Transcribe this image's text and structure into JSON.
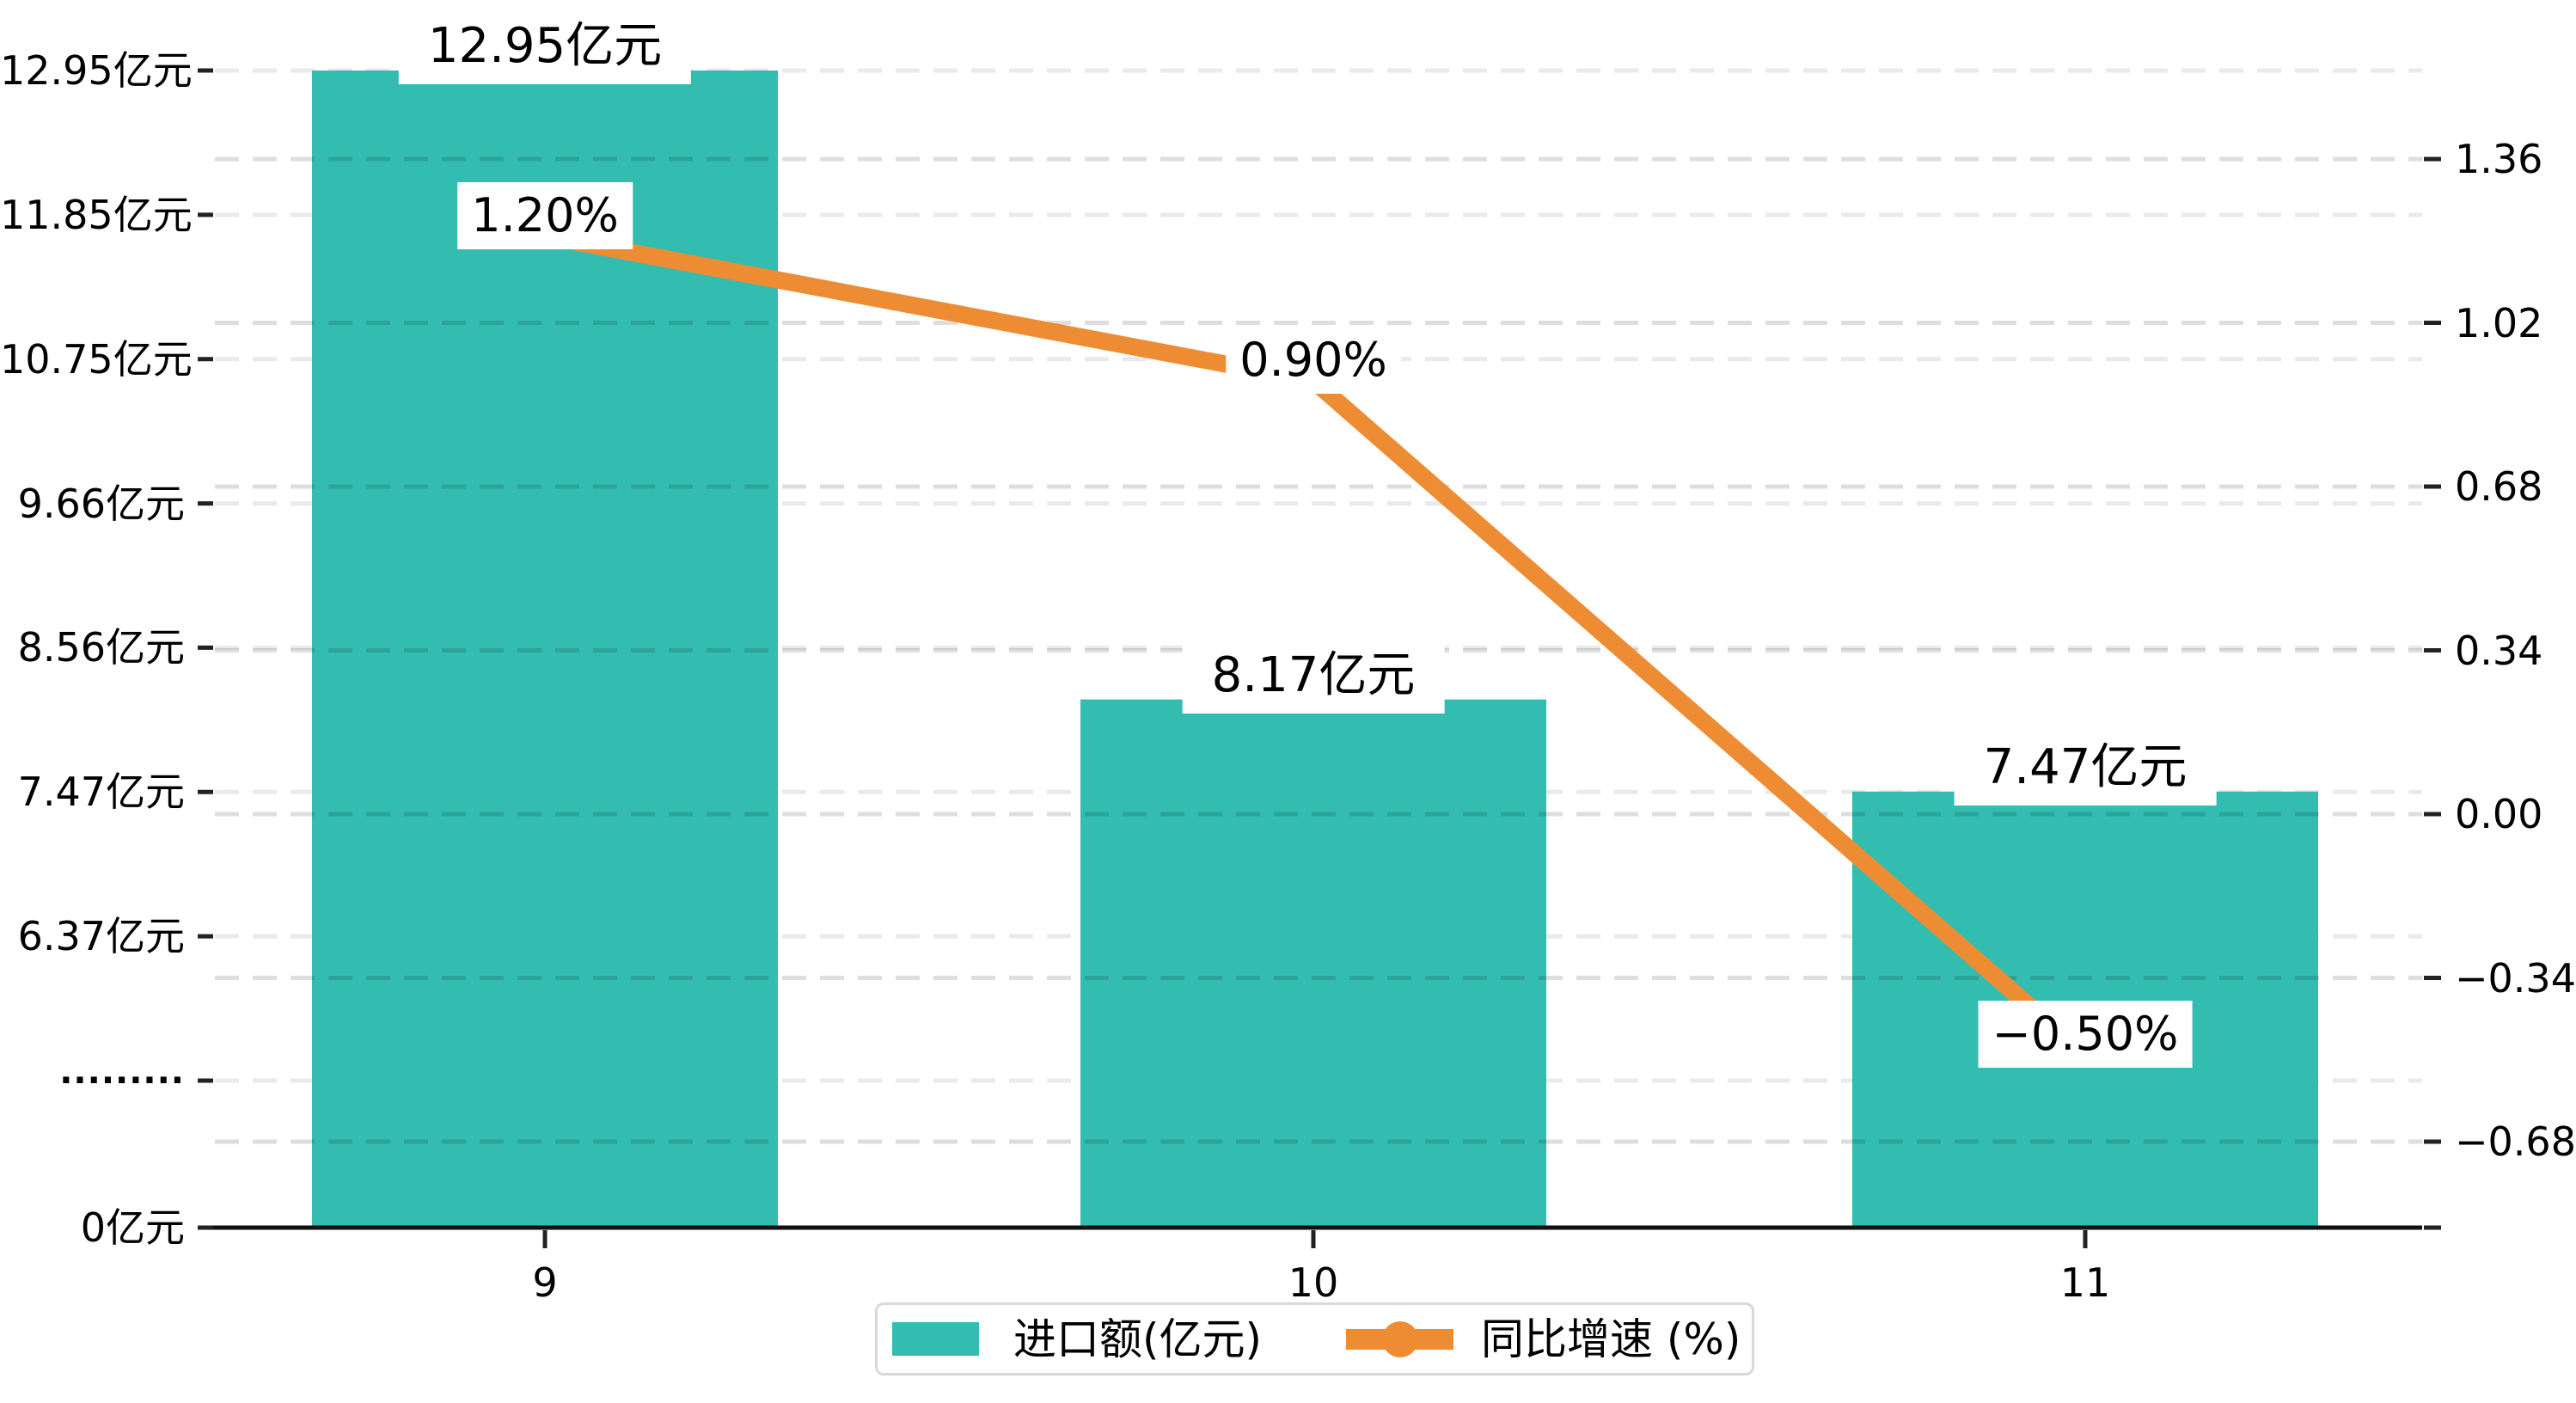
{
  "colors": {
    "background": "#FFFFFF",
    "bar": "#33BDB0",
    "line": "#EE8C33",
    "axis": "#111111",
    "tick": "#222222",
    "text": "#000000",
    "grid_left": "#EAEAEA",
    "grid_right": "rgba(0,0,0,0.13)",
    "legend_border": "#D9D9D9",
    "label_bg": "#FFFFFF"
  },
  "chart_data": {
    "type": "bar+line",
    "title": "",
    "categories": [
      "9",
      "10",
      "11"
    ],
    "series": [
      {
        "name": "进口额(亿元)",
        "type": "bar",
        "axis": "left",
        "color": "#33BDB0",
        "values": [
          12.95,
          8.17,
          7.47
        ],
        "data_labels": [
          "12.95亿元",
          "8.17亿元",
          "7.47亿元"
        ]
      },
      {
        "name": "同比增速 (%)",
        "type": "line",
        "axis": "right",
        "color": "#EE8C33",
        "values": [
          1.2,
          0.9,
          -0.5
        ],
        "data_labels": [
          "1.20%",
          "0.90%",
          "−0.50%"
        ]
      }
    ],
    "left_axis": {
      "unit": "亿元",
      "broken_axis": true,
      "tick_labels": [
        "12.95亿元",
        "11.85亿元",
        "10.75亿元",
        "9.66亿元",
        "8.56亿元",
        "7.47亿元",
        "6.37亿元",
        "·········",
        "0亿元"
      ],
      "tick_values": [
        12.95,
        11.85,
        10.75,
        9.66,
        8.56,
        7.47,
        6.37,
        null,
        0
      ]
    },
    "right_axis": {
      "tick_labels": [
        "1.36",
        "1.02",
        "0.68",
        "0.34",
        "0.00",
        "−0.34",
        "−0.68"
      ],
      "tick_values": [
        1.36,
        1.02,
        0.68,
        0.34,
        0.0,
        -0.34,
        -0.68
      ]
    },
    "x_axis": {
      "tick_labels": [
        "9",
        "10",
        "11"
      ]
    },
    "legend": {
      "position": "bottom",
      "items": [
        {
          "label": "进口额(亿元)",
          "marker": "bar-swatch",
          "color": "#33BDB0"
        },
        {
          "label": "同比增速 (%)",
          "marker": "line-with-dot",
          "color": "#EE8C33"
        }
      ]
    },
    "grid": {
      "style": "dashed",
      "left_gridlines": true,
      "right_gridlines": true
    }
  }
}
